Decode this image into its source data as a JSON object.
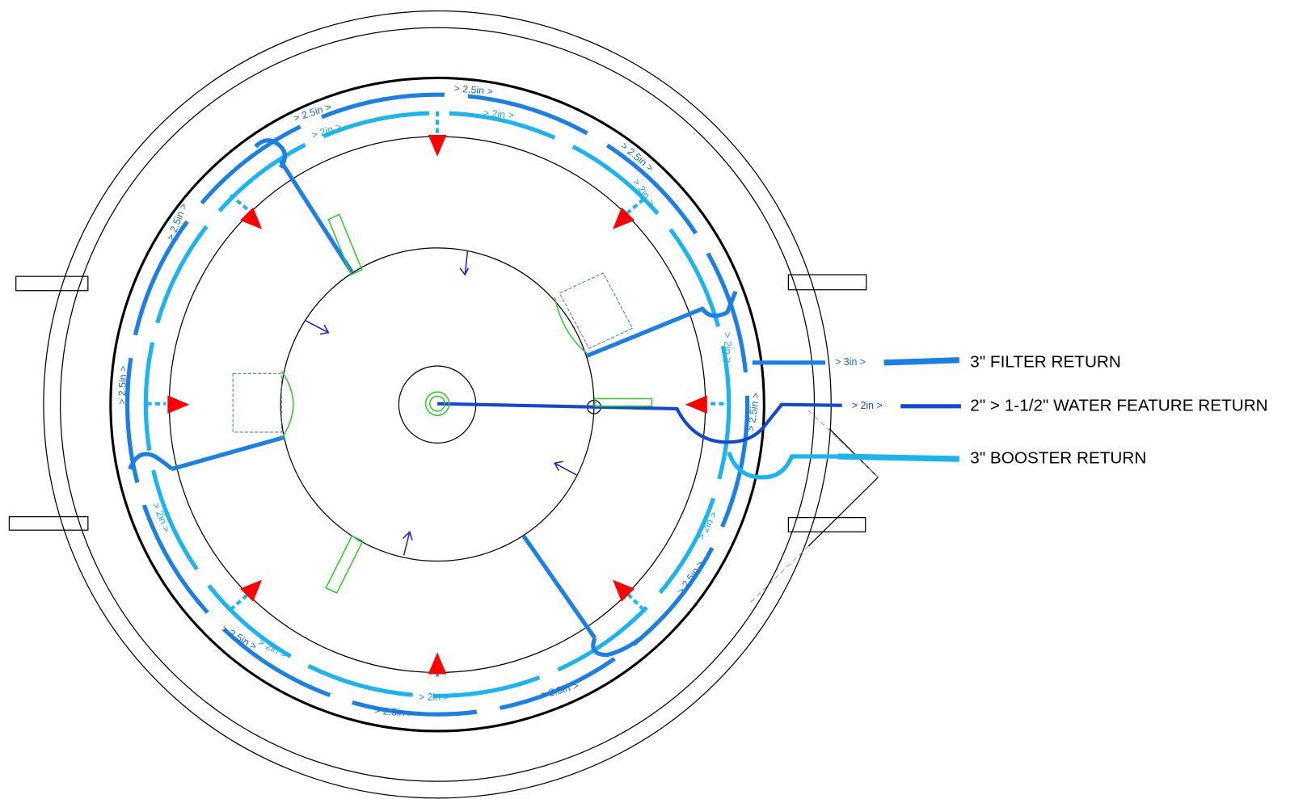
{
  "legend": [
    {
      "label": "3\" FILTER RETURN"
    },
    {
      "label": "2\" > 1-1/2\" WATER FEATURE RETURN"
    },
    {
      "label": "3\" BOOSTER RETURN"
    }
  ],
  "pipe_labels": [
    "> 2.5in >",
    "> 2in >",
    "> 2.5in >",
    "> 2in >",
    "> 2.5in >",
    "> 2in >",
    "> 2.5in >",
    "> 2.5in >",
    "> 2in >",
    "> 2.5in >",
    "> 3in >",
    "> 2in >",
    "> 2in >",
    "> 2in >",
    "> 2.5in >",
    "> 2.5in >",
    "> 2in >",
    "> 2in >",
    "> 2.5in >",
    "> 2.5in >"
  ]
}
